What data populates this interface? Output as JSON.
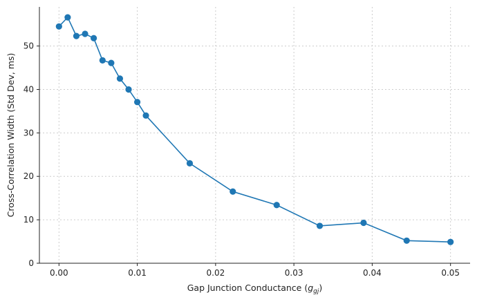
{
  "chart_data": {
    "type": "line",
    "title": "",
    "xlabel": "Gap Junction Conductance (",
    "xlabel_var": "g",
    "xlabel_sub": "gj",
    "xlabel_close": ")",
    "ylabel": "Cross-Correlation Width (Std Dev, ms)",
    "xlim": [
      -0.0025,
      0.0525
    ],
    "ylim": [
      0,
      59
    ],
    "xticks": [
      0.0,
      0.01,
      0.02,
      0.03,
      0.04,
      0.05
    ],
    "xtick_labels": [
      "0.00",
      "0.01",
      "0.02",
      "0.03",
      "0.04",
      "0.05"
    ],
    "yticks": [
      0,
      10,
      20,
      30,
      40,
      50
    ],
    "ytick_labels": [
      "0",
      "10",
      "20",
      "30",
      "40",
      "50"
    ],
    "grid": true,
    "color": "#1f77b4",
    "series": [
      {
        "x": [
          0.0,
          0.00111,
          0.00222,
          0.00333,
          0.00444,
          0.00556,
          0.00667,
          0.00778,
          0.00889,
          0.01,
          0.0111,
          0.0167,
          0.0222,
          0.0278,
          0.0333,
          0.0389,
          0.0444,
          0.05
        ],
        "y": [
          54.5,
          56.6,
          52.3,
          52.8,
          51.8,
          46.7,
          46.1,
          42.5,
          40.0,
          37.1,
          34.0,
          23.0,
          16.5,
          13.4,
          8.6,
          9.3,
          5.2,
          4.9
        ]
      }
    ]
  }
}
